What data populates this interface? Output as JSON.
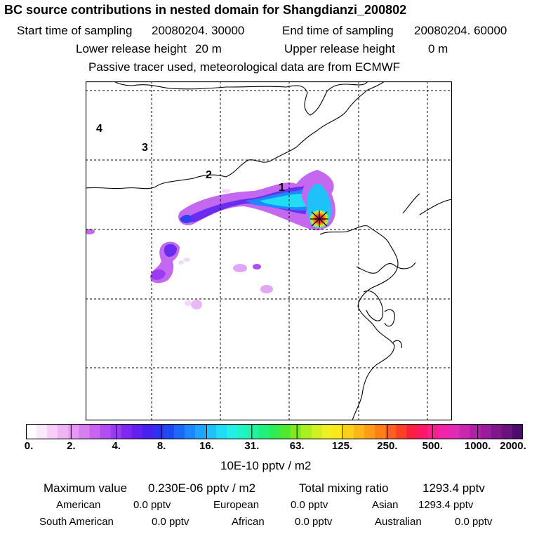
{
  "header": {
    "title": "BC  source contributions in nested domain for Shangdianzi_200802",
    "start_time_label": "Start time of sampling",
    "start_time_value": "20080204. 30000",
    "end_time_label": "End time of sampling",
    "end_time_value": "20080204. 60000",
    "lower_release_label": "Lower release height",
    "lower_release_value": "20 m",
    "upper_release_label": "Upper release height",
    "upper_release_value": "0 m",
    "note": "Passive tracer used, meteorological data are from ECMWF"
  },
  "map": {
    "contour_labels": [
      "1",
      "2",
      "3",
      "4"
    ],
    "site_marker": "Shangdianzi"
  },
  "colorbar": {
    "tick_labels": [
      "0.",
      "2.",
      "4.",
      "8.",
      "16.",
      "31.",
      "63.",
      "125.",
      "250.",
      "500.",
      "1000.",
      "2000."
    ],
    "colors": [
      "#ffffff",
      "#fce8fc",
      "#f6cef8",
      "#eeb4f4",
      "#e59af0",
      "#d87ff0",
      "#c864f0",
      "#b24ef0",
      "#9c3cf2",
      "#8028f0",
      "#6420f0",
      "#4a20f0",
      "#3030f0",
      "#2048f4",
      "#1c68f8",
      "#1c88fc",
      "#20a4fc",
      "#20c0f8",
      "#20dcf4",
      "#20f0e8",
      "#20f4c4",
      "#20f4a0",
      "#20f07c",
      "#30ec54",
      "#50e830",
      "#80e820",
      "#a8f020",
      "#d0f020",
      "#f0f020",
      "#fce818",
      "#fcd018",
      "#fcb818",
      "#fc9c18",
      "#fc8018",
      "#fc6020",
      "#fc4028",
      "#fc2040",
      "#fc1868",
      "#f8208c",
      "#f024a8",
      "#e02cb4",
      "#c828b0",
      "#b020a8",
      "#981c9c",
      "#80188c",
      "#68147c",
      "#500c6c"
    ],
    "units": "10E-10 pptv / m2"
  },
  "stats": {
    "max_label": "Maximum value",
    "max_value": "0.230E-06 pptv / m2",
    "total_label": "Total mixing ratio",
    "total_value": "1293.4 pptv",
    "regions": [
      {
        "name": "American",
        "value": "0.0 pptv"
      },
      {
        "name": "European",
        "value": "0.0 pptv"
      },
      {
        "name": "Asian",
        "value": "1293.4 pptv"
      },
      {
        "name": "South American",
        "value": "0.0 pptv"
      },
      {
        "name": "African",
        "value": "0.0 pptv"
      },
      {
        "name": "Australian",
        "value": "0.0 pptv"
      }
    ]
  }
}
